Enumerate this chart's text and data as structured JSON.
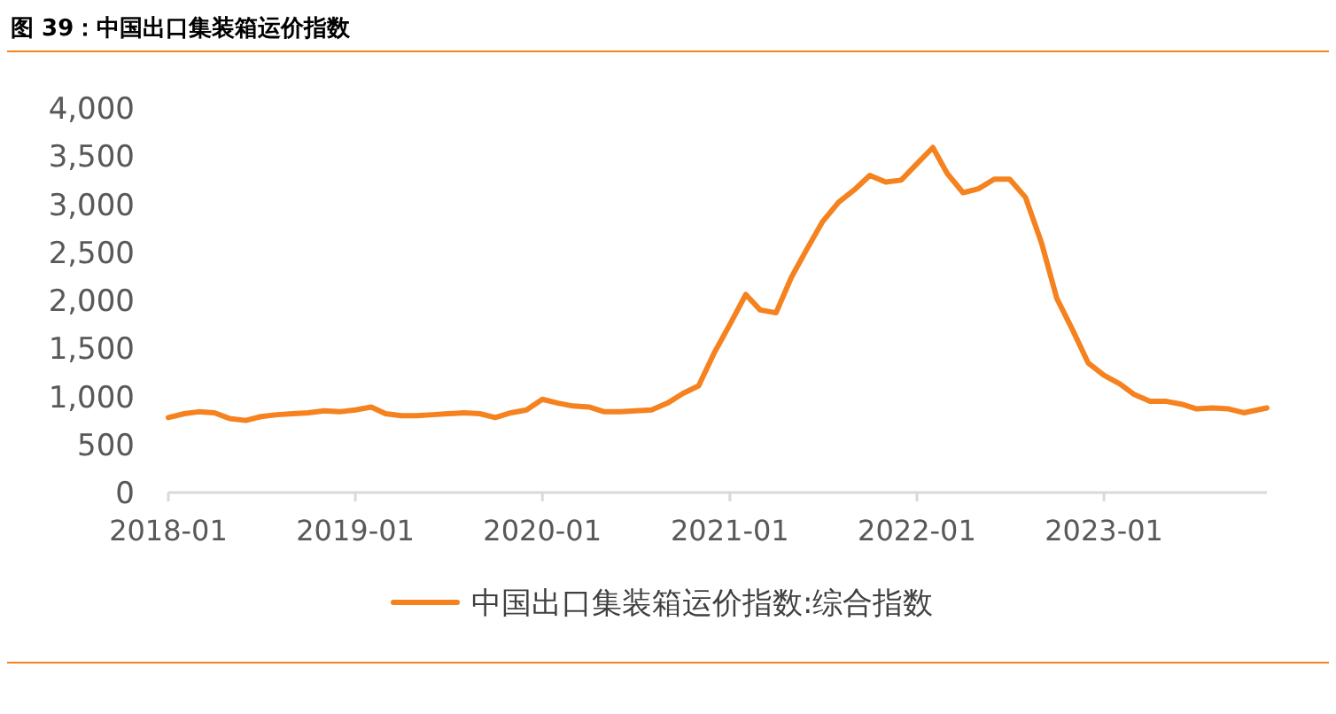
{
  "chart_data": {
    "type": "line",
    "title": "图 39：中国出口集装箱运价指数",
    "legend": "bottom",
    "grid": false,
    "marker": "none",
    "line_style": "solid",
    "xlim": [
      "2018-01",
      "2023-11-15"
    ],
    "xticks": [
      {
        "value": "2018-01",
        "label": "2018-01"
      },
      {
        "value": "2019-01",
        "label": "2019-01"
      },
      {
        "value": "2020-01",
        "label": "2020-01"
      },
      {
        "value": "2021-01",
        "label": "2021-01"
      },
      {
        "value": "2022-01",
        "label": "2022-01"
      },
      {
        "value": "2023-01",
        "label": "2023-01"
      }
    ],
    "ylim": [
      0,
      4000
    ],
    "yticks": [
      0,
      500,
      {
        "value": 1000,
        "label": "1,000"
      },
      {
        "value": 1500,
        "label": "1,500"
      },
      {
        "value": 2000,
        "label": "2,000"
      },
      {
        "value": 2500,
        "label": "2,500"
      },
      {
        "value": 3000,
        "label": "3,000"
      },
      {
        "value": 3500,
        "label": "3,500"
      },
      {
        "value": 4000,
        "label": "4,000"
      }
    ],
    "x": [
      "2018-01",
      "2018-02",
      "2018-03",
      "2018-04",
      "2018-05",
      "2018-06",
      "2018-07",
      "2018-08",
      "2018-09",
      "2018-10",
      "2018-11",
      "2018-12",
      "2019-01",
      "2019-02",
      "2019-03",
      "2019-04",
      "2019-05",
      "2019-06",
      "2019-07",
      "2019-08",
      "2019-09",
      "2019-10",
      "2019-11",
      "2019-12",
      "2020-01",
      "2020-02",
      "2020-03",
      "2020-04",
      "2020-05",
      "2020-06",
      "2020-07",
      "2020-08",
      "2020-09",
      "2020-10",
      "2020-11",
      "2020-12",
      "2021-01",
      "2021-02",
      "2021-03",
      "2021-04",
      "2021-05",
      "2021-06",
      "2021-07",
      "2021-08",
      "2021-09",
      "2021-10",
      "2021-11",
      "2021-12",
      "2022-01",
      "2022-02",
      "2022-03",
      "2022-04",
      "2022-05",
      "2022-06",
      "2022-07",
      "2022-08",
      "2022-09",
      "2022-10",
      "2022-11",
      "2022-12",
      "2023-01",
      "2023-02",
      "2023-03",
      "2023-04",
      "2023-05",
      "2023-06",
      "2023-07",
      "2023-08",
      "2023-09",
      "2023-10",
      "2023-11-15"
    ],
    "series": [
      {
        "name": "中国出口集装箱运价指数:综合指数",
        "color": "#f5821f",
        "values": [
          780,
          820,
          840,
          830,
          770,
          750,
          790,
          810,
          820,
          830,
          850,
          840,
          860,
          890,
          820,
          800,
          800,
          810,
          820,
          830,
          820,
          780,
          830,
          860,
          970,
          930,
          900,
          890,
          840,
          840,
          850,
          860,
          930,
          1030,
          1110,
          1450,
          1750,
          2060,
          1900,
          1870,
          2240,
          2540,
          2820,
          3020,
          3150,
          3300,
          3230,
          3250,
          3420,
          3590,
          3320,
          3120,
          3160,
          3260,
          3260,
          3070,
          2600,
          2020,
          1690,
          1350,
          1220,
          1130,
          1020,
          950,
          950,
          920,
          870,
          880,
          870,
          830,
          880
        ]
      }
    ]
  }
}
